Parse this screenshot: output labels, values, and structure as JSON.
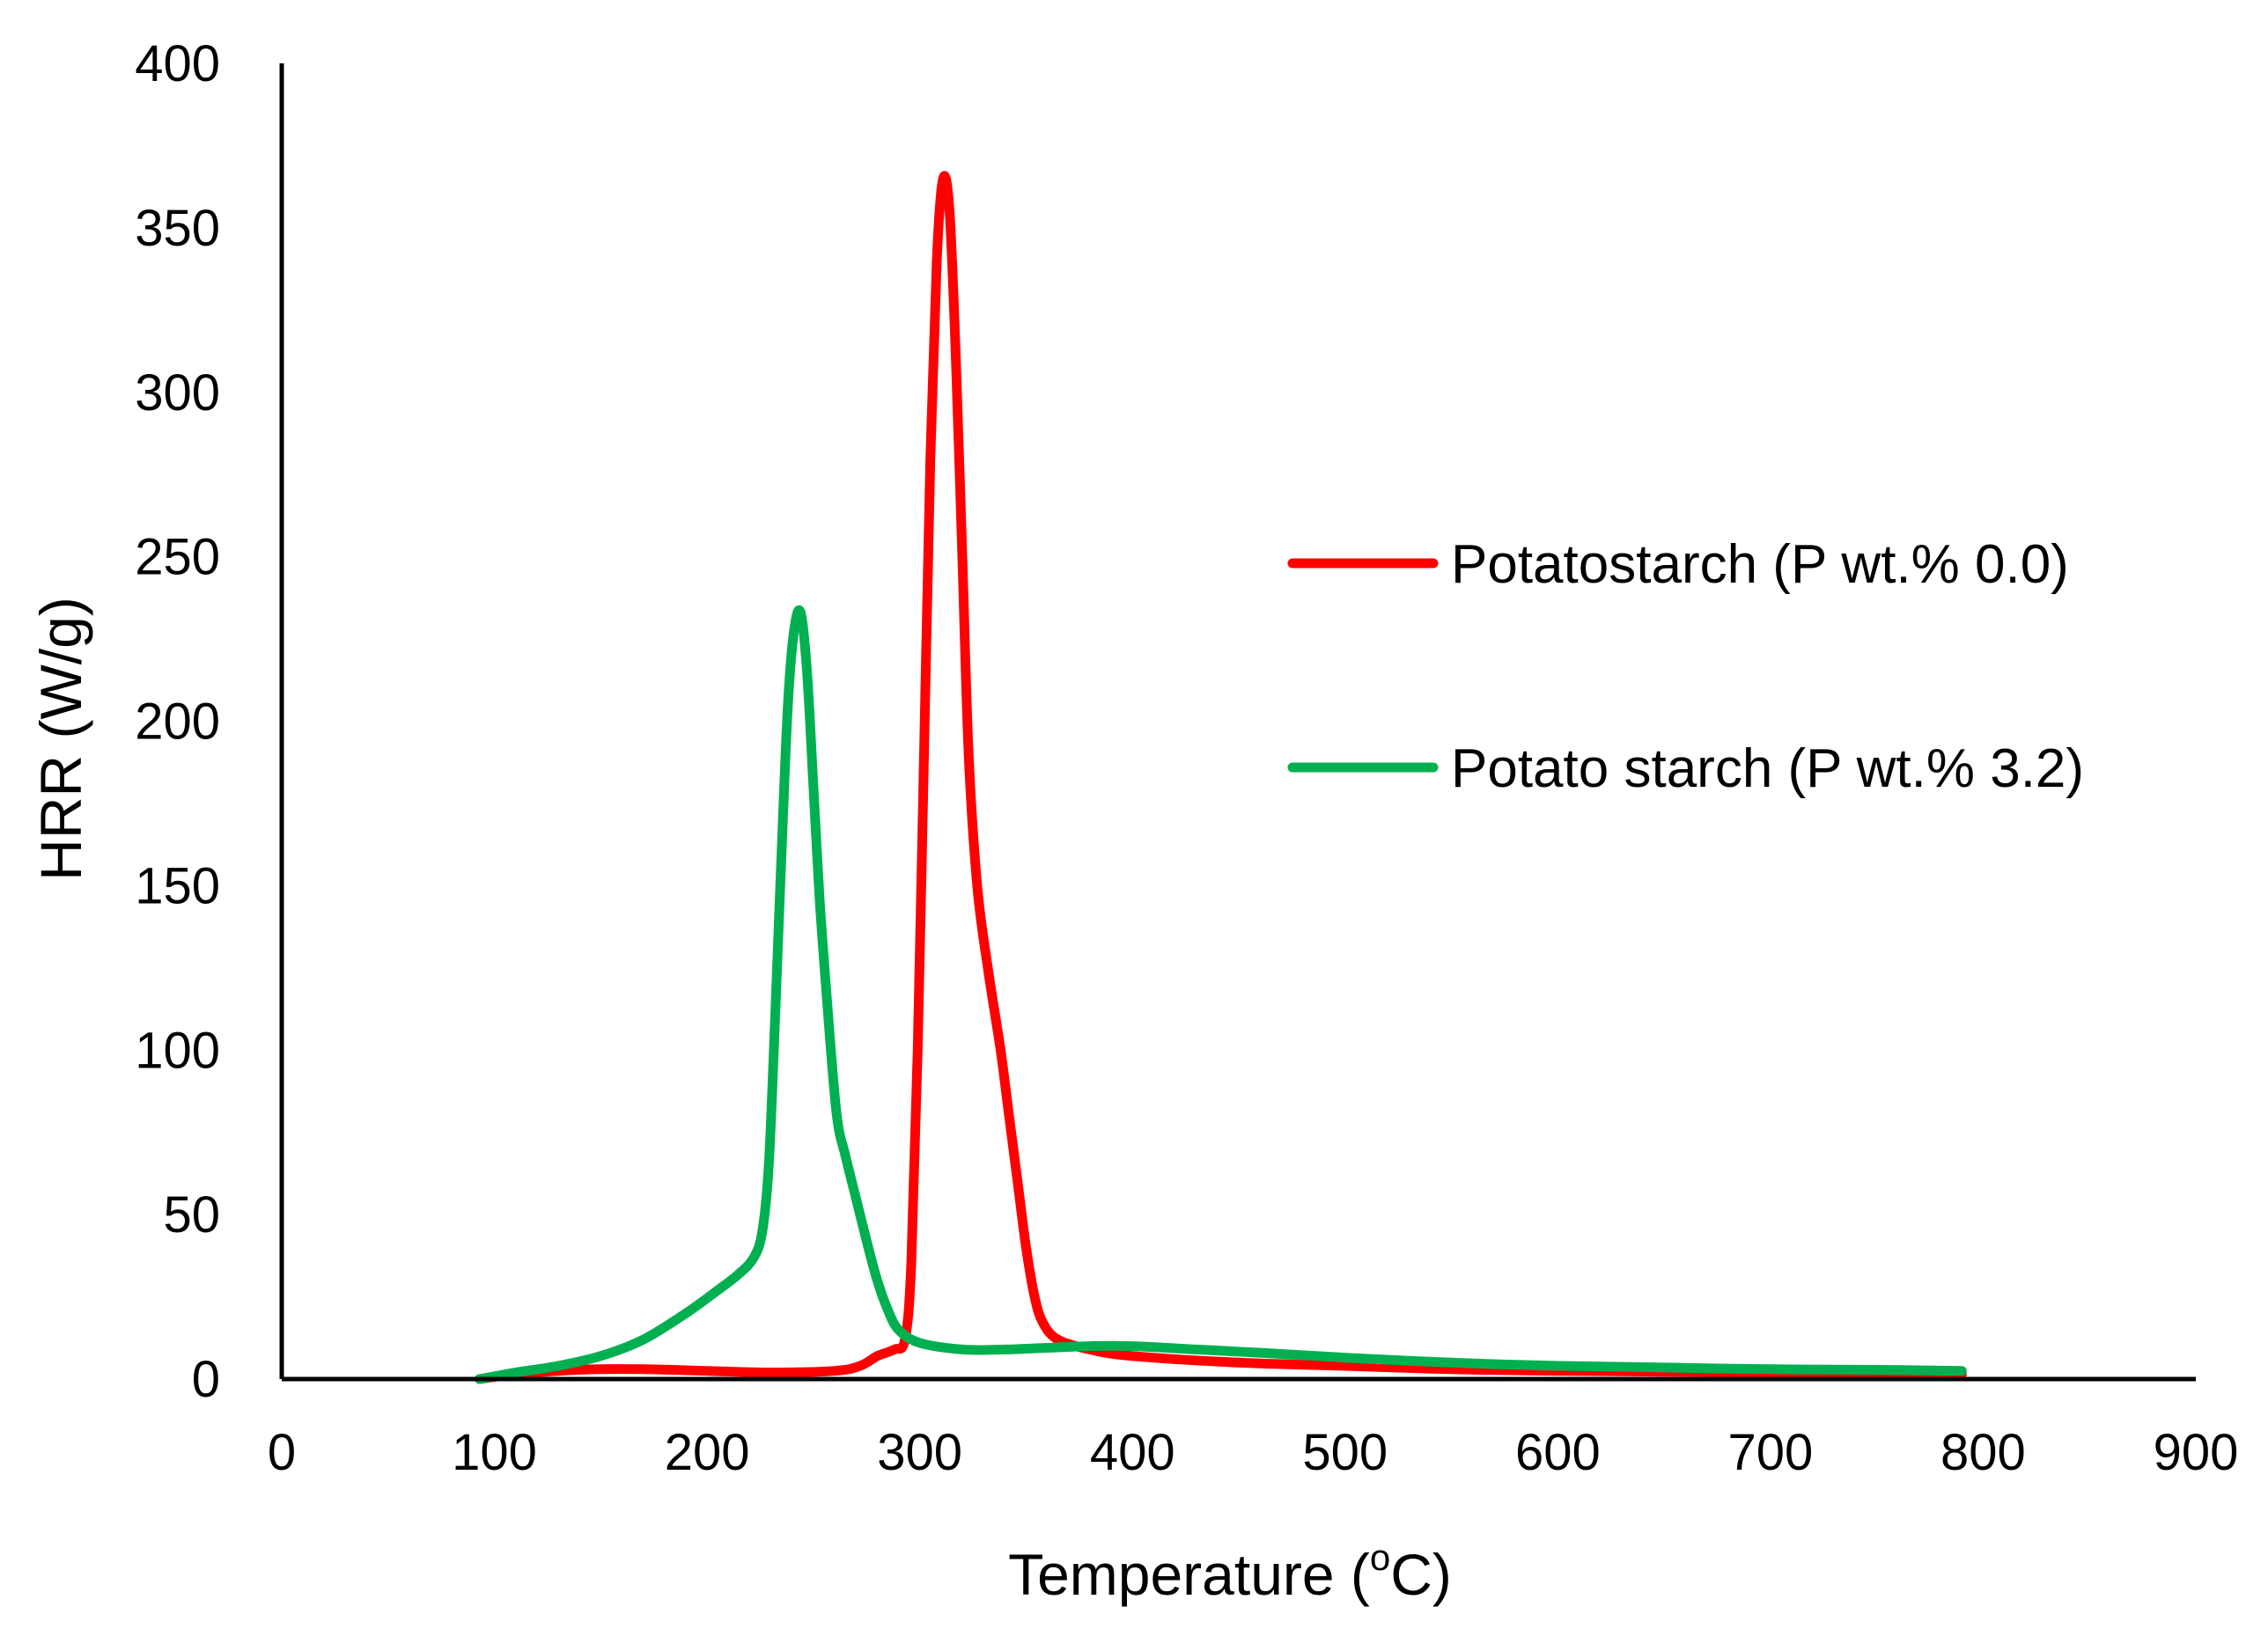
{
  "chart_data": {
    "type": "line",
    "title": "",
    "xlabel": "Temperature (",
    "xlabel_sup": "o",
    "xlabel_end": "C)",
    "ylabel": "HRR (W/g)",
    "xlim": [
      0,
      900
    ],
    "ylim": [
      0,
      400
    ],
    "xticks": [
      0,
      100,
      200,
      300,
      400,
      500,
      600,
      700,
      800,
      900
    ],
    "yticks": [
      0,
      50,
      100,
      150,
      200,
      250,
      300,
      350,
      400
    ],
    "xtick_labels": [
      "0",
      "100",
      "200",
      "300",
      "400",
      "500",
      "600",
      "700",
      "800",
      "900"
    ],
    "ytick_labels": [
      "0",
      "50",
      "100",
      "150",
      "200",
      "250",
      "300",
      "350",
      "400"
    ],
    "grid": false,
    "legend_position": "right",
    "series": [
      {
        "name": "Potatostarch (P wt.% 0.0)",
        "color": "#ff0000",
        "points": [
          [
            93,
            0
          ],
          [
            110,
            1.5
          ],
          [
            130,
            2.5
          ],
          [
            150,
            3
          ],
          [
            170,
            3
          ],
          [
            200,
            2.5
          ],
          [
            230,
            2
          ],
          [
            260,
            2.5
          ],
          [
            272,
            4
          ],
          [
            280,
            7
          ],
          [
            288,
            9
          ],
          [
            293,
            12
          ],
          [
            296,
            35
          ],
          [
            299,
            100
          ],
          [
            302,
            190
          ],
          [
            305,
            280
          ],
          [
            308,
            340
          ],
          [
            311,
            365
          ],
          [
            314,
            355
          ],
          [
            317,
            310
          ],
          [
            320,
            250
          ],
          [
            323,
            190
          ],
          [
            327,
            150
          ],
          [
            332,
            125
          ],
          [
            338,
            100
          ],
          [
            342,
            80
          ],
          [
            346,
            60
          ],
          [
            350,
            40
          ],
          [
            354,
            25
          ],
          [
            358,
            17
          ],
          [
            365,
            12
          ],
          [
            380,
            9
          ],
          [
            400,
            7
          ],
          [
            450,
            5
          ],
          [
            500,
            4
          ],
          [
            550,
            3
          ],
          [
            600,
            2.5
          ],
          [
            700,
            2
          ],
          [
            790,
            1.5
          ]
        ]
      },
      {
        "name": "Potato starch (P wt.% 3.2)",
        "color": "#00b050",
        "points": [
          [
            93,
            0
          ],
          [
            110,
            2
          ],
          [
            130,
            4
          ],
          [
            150,
            7
          ],
          [
            170,
            12
          ],
          [
            190,
            20
          ],
          [
            205,
            27
          ],
          [
            215,
            32
          ],
          [
            222,
            37
          ],
          [
            226,
            45
          ],
          [
            229,
            65
          ],
          [
            232,
            110
          ],
          [
            235,
            160
          ],
          [
            238,
            205
          ],
          [
            241,
            228
          ],
          [
            244,
            233
          ],
          [
            247,
            215
          ],
          [
            250,
            180
          ],
          [
            253,
            145
          ],
          [
            257,
            110
          ],
          [
            261,
            80
          ],
          [
            265,
            68
          ],
          [
            270,
            55
          ],
          [
            275,
            42
          ],
          [
            280,
            30
          ],
          [
            285,
            21
          ],
          [
            290,
            15
          ],
          [
            300,
            11
          ],
          [
            320,
            9
          ],
          [
            340,
            9
          ],
          [
            360,
            9.5
          ],
          [
            380,
            10
          ],
          [
            400,
            10
          ],
          [
            430,
            9
          ],
          [
            460,
            8
          ],
          [
            500,
            6.5
          ],
          [
            550,
            5
          ],
          [
            600,
            4
          ],
          [
            650,
            3.5
          ],
          [
            700,
            3
          ],
          [
            750,
            2.8
          ],
          [
            790,
            2.5
          ]
        ]
      }
    ]
  }
}
